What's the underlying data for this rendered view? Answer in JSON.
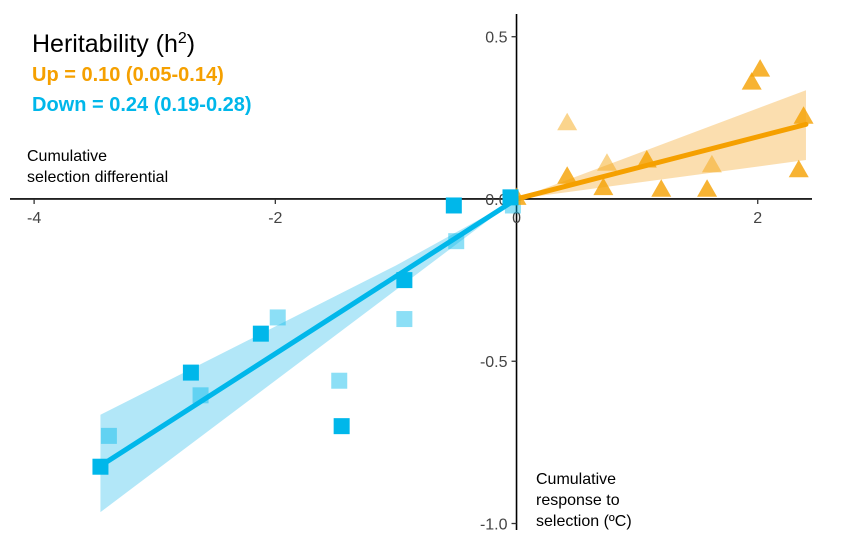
{
  "chart_data": {
    "type": "scatter",
    "title": "Heritability (h",
    "title_sup": "2",
    "title_close": ")",
    "xlabel_lines": [
      "Cumulative",
      "selection differential"
    ],
    "ylabel_lines": [
      "Cumulative",
      "response to",
      "selection (ºC)"
    ],
    "xlim": [
      -4.2,
      2.45
    ],
    "ylim": [
      -1.02,
      0.57
    ],
    "x_ticks": [
      {
        "value": -4,
        "label": "-4"
      },
      {
        "value": -2,
        "label": "-2"
      },
      {
        "value": 0,
        "label": "0"
      },
      {
        "value": 2,
        "label": "2"
      }
    ],
    "y_ticks": [
      {
        "value": 0.5,
        "label": "0.5"
      },
      {
        "value": 0.0,
        "label": "0.0"
      },
      {
        "value": -0.5,
        "label": "-0.5"
      },
      {
        "value": -1.0,
        "label": "-1.0"
      }
    ],
    "grid": false,
    "series": [
      {
        "name": "Up",
        "label": "Up = 0.10 (0.05-0.14)",
        "color": "#f5a000",
        "band_color": "#f9c87a",
        "marker": "triangle",
        "fit": {
          "slope": 0.0958,
          "x_start": 0,
          "x_end": 2.4
        },
        "band": [
          {
            "x": 0.0,
            "lower": 0.0,
            "upper": 0.0
          },
          {
            "x": 2.4,
            "lower": 0.12,
            "upper": 0.335
          }
        ],
        "points_dark": [
          {
            "x": 0.0,
            "y": 0.005
          },
          {
            "x": 0.42,
            "y": 0.07
          },
          {
            "x": 0.72,
            "y": 0.035
          },
          {
            "x": 1.08,
            "y": 0.12
          },
          {
            "x": 1.2,
            "y": 0.03
          },
          {
            "x": 1.58,
            "y": 0.03
          },
          {
            "x": 1.95,
            "y": 0.36
          },
          {
            "x": 2.02,
            "y": 0.4
          },
          {
            "x": 2.34,
            "y": 0.09
          },
          {
            "x": 2.38,
            "y": 0.255
          }
        ],
        "points_light": [
          {
            "x": 0.42,
            "y": 0.235
          },
          {
            "x": 0.75,
            "y": 0.11
          },
          {
            "x": 1.62,
            "y": 0.105
          }
        ]
      },
      {
        "name": "Down",
        "label": "Down = 0.24 (0.19-0.28)",
        "color": "#00b7ea",
        "band_color": "#7fd7f4",
        "marker": "square",
        "fit": {
          "slope": 0.2384,
          "x_start": -3.45,
          "x_end": 0
        },
        "band": [
          {
            "x": -3.45,
            "lower": -0.965,
            "upper": -0.665
          },
          {
            "x": -1.0,
            "lower": -0.28,
            "upper": -0.205
          },
          {
            "x": 0.0,
            "lower": 0.0,
            "upper": 0.0
          }
        ],
        "points_dark": [
          {
            "x": -3.45,
            "y": -0.825
          },
          {
            "x": -2.7,
            "y": -0.535
          },
          {
            "x": -2.12,
            "y": -0.415
          },
          {
            "x": -1.45,
            "y": -0.7
          },
          {
            "x": -0.93,
            "y": -0.25
          },
          {
            "x": -0.52,
            "y": -0.02
          },
          {
            "x": -0.05,
            "y": 0.005
          }
        ],
        "points_light": [
          {
            "x": -3.38,
            "y": -0.73
          },
          {
            "x": -2.62,
            "y": -0.605
          },
          {
            "x": -1.98,
            "y": -0.365
          },
          {
            "x": -1.47,
            "y": -0.56
          },
          {
            "x": -0.93,
            "y": -0.37
          },
          {
            "x": -0.5,
            "y": -0.13
          },
          {
            "x": -0.03,
            "y": -0.02
          }
        ]
      }
    ]
  }
}
